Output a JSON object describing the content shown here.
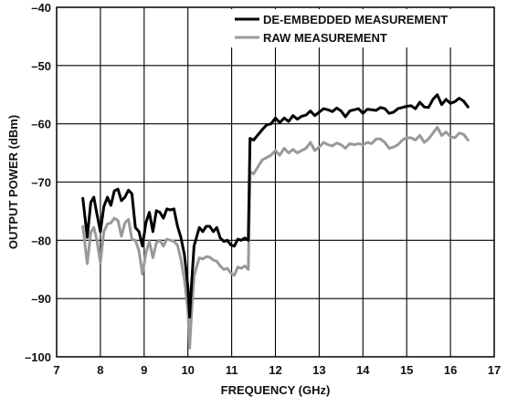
{
  "chart_data": {
    "type": "line",
    "xlabel": "FREQUENCY (GHz)",
    "ylabel": "OUTPUT POWER (dBm)",
    "xlim": [
      7,
      17
    ],
    "ylim": [
      -100,
      -40
    ],
    "x_ticks": [
      "7",
      "8",
      "9",
      "10",
      "11",
      "12",
      "13",
      "14",
      "15",
      "16",
      "17"
    ],
    "y_ticks": [
      "–40",
      "–50",
      "–60",
      "–70",
      "–80",
      "–90",
      "–100"
    ],
    "grid": true,
    "legend_position": "top-right",
    "series": [
      {
        "name": "DE-EMBEDDED MEASUREMENT",
        "color": "#000000",
        "points": [
          [
            7.6,
            -72.8
          ],
          [
            7.7,
            -79.5
          ],
          [
            7.78,
            -73.5
          ],
          [
            7.85,
            -72.6
          ],
          [
            7.92,
            -75.5
          ],
          [
            8.0,
            -78.5
          ],
          [
            8.08,
            -74.2
          ],
          [
            8.16,
            -72.6
          ],
          [
            8.24,
            -74.0
          ],
          [
            8.32,
            -71.5
          ],
          [
            8.4,
            -71.2
          ],
          [
            8.48,
            -73.2
          ],
          [
            8.56,
            -72.6
          ],
          [
            8.64,
            -71.4
          ],
          [
            8.72,
            -72.0
          ],
          [
            8.8,
            -77.8
          ],
          [
            8.88,
            -78.5
          ],
          [
            8.96,
            -81.0
          ],
          [
            9.04,
            -77.0
          ],
          [
            9.12,
            -75.2
          ],
          [
            9.2,
            -78.5
          ],
          [
            9.28,
            -74.9
          ],
          [
            9.36,
            -75.2
          ],
          [
            9.44,
            -76.2
          ],
          [
            9.52,
            -74.6
          ],
          [
            9.6,
            -74.8
          ],
          [
            9.68,
            -74.6
          ],
          [
            9.76,
            -77.5
          ],
          [
            9.84,
            -79.5
          ],
          [
            9.92,
            -82.5
          ],
          [
            10.0,
            -88.0
          ],
          [
            10.04,
            -93.2
          ],
          [
            10.08,
            -88.0
          ],
          [
            10.14,
            -81.0
          ],
          [
            10.2,
            -79.4
          ],
          [
            10.26,
            -77.8
          ],
          [
            10.34,
            -78.5
          ],
          [
            10.42,
            -77.6
          ],
          [
            10.5,
            -77.6
          ],
          [
            10.58,
            -78.5
          ],
          [
            10.66,
            -77.8
          ],
          [
            10.74,
            -79.6
          ],
          [
            10.82,
            -80.2
          ],
          [
            10.9,
            -80.0
          ],
          [
            10.98,
            -80.8
          ],
          [
            11.06,
            -81.0
          ],
          [
            11.14,
            -79.8
          ],
          [
            11.22,
            -80.0
          ],
          [
            11.3,
            -79.6
          ],
          [
            11.38,
            -80.0
          ],
          [
            11.42,
            -62.5
          ],
          [
            11.5,
            -62.8
          ],
          [
            11.6,
            -61.9
          ],
          [
            11.7,
            -61.0
          ],
          [
            11.8,
            -60.2
          ],
          [
            11.9,
            -60.0
          ],
          [
            12.0,
            -59.0
          ],
          [
            12.1,
            -59.8
          ],
          [
            12.2,
            -59.0
          ],
          [
            12.3,
            -59.6
          ],
          [
            12.4,
            -58.6
          ],
          [
            12.5,
            -59.2
          ],
          [
            12.6,
            -58.7
          ],
          [
            12.7,
            -58.5
          ],
          [
            12.8,
            -57.8
          ],
          [
            12.9,
            -58.6
          ],
          [
            13.0,
            -58.0
          ],
          [
            13.1,
            -57.4
          ],
          [
            13.2,
            -57.6
          ],
          [
            13.3,
            -57.9
          ],
          [
            13.4,
            -57.3
          ],
          [
            13.5,
            -57.8
          ],
          [
            13.6,
            -58.8
          ],
          [
            13.7,
            -57.8
          ],
          [
            13.8,
            -57.6
          ],
          [
            13.9,
            -57.4
          ],
          [
            14.0,
            -58.2
          ],
          [
            14.1,
            -57.5
          ],
          [
            14.2,
            -57.6
          ],
          [
            14.3,
            -57.7
          ],
          [
            14.4,
            -57.2
          ],
          [
            14.5,
            -57.4
          ],
          [
            14.6,
            -58.2
          ],
          [
            14.7,
            -58.0
          ],
          [
            14.8,
            -57.4
          ],
          [
            14.9,
            -57.2
          ],
          [
            15.0,
            -57.0
          ],
          [
            15.1,
            -56.9
          ],
          [
            15.2,
            -57.4
          ],
          [
            15.3,
            -56.3
          ],
          [
            15.4,
            -57.1
          ],
          [
            15.5,
            -57.2
          ],
          [
            15.6,
            -55.8
          ],
          [
            15.7,
            -55.0
          ],
          [
            15.8,
            -56.7
          ],
          [
            15.9,
            -55.8
          ],
          [
            16.0,
            -56.5
          ],
          [
            16.1,
            -56.2
          ],
          [
            16.2,
            -55.6
          ],
          [
            16.3,
            -56.1
          ],
          [
            16.4,
            -57.1
          ]
        ]
      },
      {
        "name": "RAW MEASUREMENT",
        "color": "#999999",
        "points": [
          [
            7.6,
            -77.6
          ],
          [
            7.7,
            -84.0
          ],
          [
            7.78,
            -78.6
          ],
          [
            7.85,
            -77.8
          ],
          [
            7.92,
            -80.0
          ],
          [
            8.0,
            -83.8
          ],
          [
            8.08,
            -78.5
          ],
          [
            8.16,
            -77.2
          ],
          [
            8.24,
            -77.0
          ],
          [
            8.32,
            -76.2
          ],
          [
            8.4,
            -76.6
          ],
          [
            8.48,
            -79.3
          ],
          [
            8.56,
            -77.0
          ],
          [
            8.64,
            -76.4
          ],
          [
            8.72,
            -79.8
          ],
          [
            8.8,
            -80.0
          ],
          [
            8.88,
            -81.8
          ],
          [
            8.96,
            -85.8
          ],
          [
            9.04,
            -82.2
          ],
          [
            9.12,
            -80.2
          ],
          [
            9.2,
            -83.0
          ],
          [
            9.28,
            -80.4
          ],
          [
            9.36,
            -80.0
          ],
          [
            9.44,
            -81.0
          ],
          [
            9.52,
            -79.8
          ],
          [
            9.6,
            -80.0
          ],
          [
            9.68,
            -80.2
          ],
          [
            9.76,
            -80.8
          ],
          [
            9.84,
            -83.2
          ],
          [
            9.92,
            -86.8
          ],
          [
            10.0,
            -92.0
          ],
          [
            10.04,
            -98.5
          ],
          [
            10.08,
            -93.0
          ],
          [
            10.14,
            -86.2
          ],
          [
            10.2,
            -84.5
          ],
          [
            10.26,
            -83.0
          ],
          [
            10.34,
            -83.2
          ],
          [
            10.42,
            -82.8
          ],
          [
            10.5,
            -82.9
          ],
          [
            10.58,
            -83.4
          ],
          [
            10.66,
            -83.6
          ],
          [
            10.74,
            -84.4
          ],
          [
            10.82,
            -85.0
          ],
          [
            10.9,
            -84.8
          ],
          [
            10.98,
            -85.6
          ],
          [
            11.06,
            -86.0
          ],
          [
            11.14,
            -84.6
          ],
          [
            11.22,
            -84.8
          ],
          [
            11.3,
            -84.4
          ],
          [
            11.38,
            -85.0
          ],
          [
            11.42,
            -68.2
          ],
          [
            11.5,
            -68.6
          ],
          [
            11.6,
            -67.4
          ],
          [
            11.7,
            -66.2
          ],
          [
            11.8,
            -65.8
          ],
          [
            11.9,
            -65.4
          ],
          [
            12.0,
            -64.6
          ],
          [
            12.1,
            -65.4
          ],
          [
            12.2,
            -64.2
          ],
          [
            12.3,
            -65.0
          ],
          [
            12.4,
            -64.4
          ],
          [
            12.5,
            -65.0
          ],
          [
            12.6,
            -64.6
          ],
          [
            12.7,
            -64.2
          ],
          [
            12.8,
            -63.2
          ],
          [
            12.9,
            -64.6
          ],
          [
            13.0,
            -64.0
          ],
          [
            13.1,
            -63.2
          ],
          [
            13.2,
            -63.6
          ],
          [
            13.3,
            -63.8
          ],
          [
            13.4,
            -63.3
          ],
          [
            13.5,
            -63.6
          ],
          [
            13.6,
            -64.2
          ],
          [
            13.7,
            -63.4
          ],
          [
            13.8,
            -63.6
          ],
          [
            13.9,
            -63.4
          ],
          [
            14.0,
            -63.6
          ],
          [
            14.1,
            -63.2
          ],
          [
            14.2,
            -63.4
          ],
          [
            14.3,
            -62.6
          ],
          [
            14.4,
            -62.6
          ],
          [
            14.5,
            -63.2
          ],
          [
            14.6,
            -64.2
          ],
          [
            14.7,
            -64.0
          ],
          [
            14.8,
            -63.6
          ],
          [
            14.9,
            -62.8
          ],
          [
            15.0,
            -62.4
          ],
          [
            15.1,
            -62.4
          ],
          [
            15.2,
            -62.8
          ],
          [
            15.3,
            -62.0
          ],
          [
            15.4,
            -63.2
          ],
          [
            15.5,
            -62.6
          ],
          [
            15.6,
            -61.6
          ],
          [
            15.7,
            -60.6
          ],
          [
            15.8,
            -62.0
          ],
          [
            15.9,
            -61.4
          ],
          [
            16.0,
            -62.2
          ],
          [
            16.1,
            -62.4
          ],
          [
            16.2,
            -61.6
          ],
          [
            16.3,
            -61.8
          ],
          [
            16.4,
            -62.8
          ]
        ]
      }
    ]
  }
}
